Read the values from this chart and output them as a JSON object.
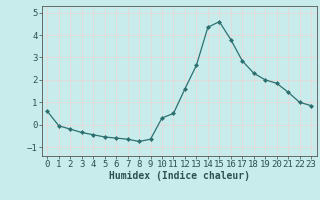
{
  "x": [
    0,
    1,
    2,
    3,
    4,
    5,
    6,
    7,
    8,
    9,
    10,
    11,
    12,
    13,
    14,
    15,
    16,
    17,
    18,
    19,
    20,
    21,
    22,
    23
  ],
  "y": [
    0.6,
    -0.05,
    -0.2,
    -0.35,
    -0.45,
    -0.55,
    -0.6,
    -0.65,
    -0.75,
    -0.65,
    0.3,
    0.5,
    1.6,
    2.65,
    4.35,
    4.6,
    3.8,
    2.85,
    2.3,
    2.0,
    1.85,
    1.45,
    1.0,
    0.85
  ],
  "bg_color": "#c8ecec",
  "line_color": "#2d7070",
  "marker_color": "#2d7070",
  "grid_color": "#e8d8d8",
  "xlabel": "Humidex (Indice chaleur)",
  "xlabel_fontsize": 7,
  "tick_fontsize": 6.5,
  "xlim": [
    -0.5,
    23.5
  ],
  "ylim": [
    -1.4,
    5.3
  ],
  "yticks": [
    -1,
    0,
    1,
    2,
    3,
    4,
    5
  ],
  "xticks": [
    0,
    1,
    2,
    3,
    4,
    5,
    6,
    7,
    8,
    9,
    10,
    11,
    12,
    13,
    14,
    15,
    16,
    17,
    18,
    19,
    20,
    21,
    22,
    23
  ]
}
